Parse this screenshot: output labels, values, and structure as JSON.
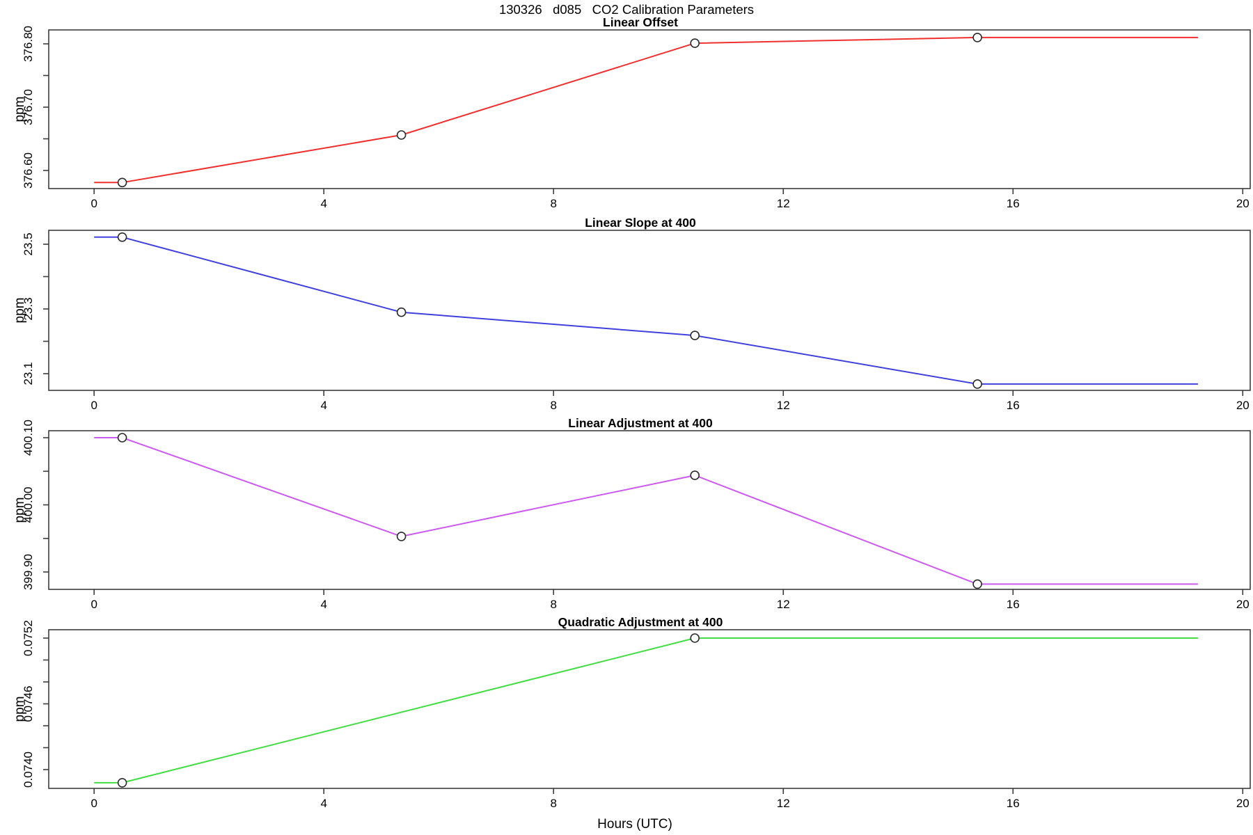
{
  "page": {
    "title": "130326   d085   CO2 Calibration Parameters",
    "xlabel": "Hours (UTC)"
  },
  "chart_data": {
    "type": "line",
    "title": "130326   d085   CO2 Calibration Parameters",
    "xlabel": "Hours (UTC)",
    "x_axis": {
      "xlim": [
        -0.79,
        20.13
      ],
      "xticks": [
        0,
        4,
        8,
        12,
        16,
        20
      ],
      "xtick_labels": [
        "0",
        "4",
        "8",
        "12",
        "16",
        "20"
      ]
    },
    "marker_style": "open-circle",
    "grid": false,
    "panels": [
      {
        "title": "Linear Offset",
        "ylabel": "ppm",
        "color": "#f02f2f",
        "x": [
          0,
          0.49,
          5.35,
          10.46,
          15.38,
          19.22
        ],
        "y": [
          376.581,
          376.581,
          376.656,
          376.801,
          376.81,
          376.81
        ],
        "marker_x": [
          0.49,
          5.35,
          10.46,
          15.38
        ],
        "marker_y": [
          376.581,
          376.656,
          376.801,
          376.81
        ],
        "ylim": [
          376.5714,
          376.822
        ],
        "yticks": [
          376.6,
          376.65,
          376.7,
          376.75,
          376.8
        ],
        "ytick_labels": [
          "376.60",
          "",
          "376.70",
          "",
          "376.80"
        ]
      },
      {
        "title": "Linear Slope at 400",
        "ylabel": "ppm",
        "color": "#4040dd",
        "x": [
          0,
          0.49,
          5.35,
          10.46,
          15.38,
          19.22
        ],
        "y": [
          23.522,
          23.522,
          23.29,
          23.218,
          23.068,
          23.068
        ],
        "marker_x": [
          0.49,
          5.35,
          10.46,
          15.38
        ],
        "marker_y": [
          23.522,
          23.29,
          23.218,
          23.068
        ],
        "ylim": [
          23.0484,
          23.543
        ],
        "yticks": [
          23.1,
          23.2,
          23.3,
          23.4,
          23.5
        ],
        "ytick_labels": [
          "23.1",
          "",
          "23.3",
          "",
          "23.5"
        ]
      },
      {
        "title": "Linear Adjustment at 400",
        "ylabel": "ppm",
        "color": "#cc5aee",
        "x": [
          0,
          0.49,
          5.35,
          10.46,
          15.38,
          19.22
        ],
        "y": [
          400.1,
          400.1,
          399.953,
          400.044,
          399.882,
          399.882
        ],
        "marker_x": [
          0.49,
          5.35,
          10.46,
          15.38
        ],
        "marker_y": [
          400.1,
          399.953,
          400.044,
          399.882
        ],
        "ylim": [
          399.8741,
          400.1104
        ],
        "yticks": [
          399.9,
          399.95,
          400.0,
          400.05,
          400.1
        ],
        "ytick_labels": [
          "399.90",
          "",
          "400.00",
          "",
          "400.10"
        ]
      },
      {
        "title": "Quadratic Adjustment at 400",
        "ylabel": "ppm",
        "color": "#42dd42",
        "x": [
          0,
          0.49,
          10.46,
          19.22
        ],
        "y": [
          0.07388,
          0.07388,
          0.0752,
          0.0752
        ],
        "marker_x": [
          0.49,
          10.46
        ],
        "marker_y": [
          0.07388,
          0.0752
        ],
        "ylim": [
          0.0738286,
          0.0752762
        ],
        "yticks": [
          0.074,
          0.0742,
          0.0744,
          0.0746,
          0.0748,
          0.075,
          0.0752
        ],
        "ytick_labels": [
          "0.0740",
          "",
          "",
          "0.0746",
          "",
          "",
          "0.0752"
        ]
      }
    ]
  }
}
